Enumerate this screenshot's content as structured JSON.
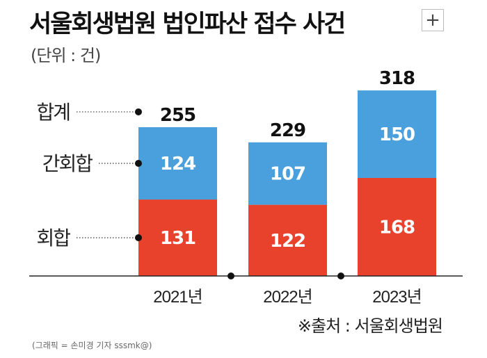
{
  "header": {
    "title": "서울회생법원 법인파산 접수 사건",
    "unit": "(단위 : 건)",
    "zoom_symbol": "+"
  },
  "chart_data": {
    "type": "bar",
    "stacked": true,
    "categories": [
      "2021년",
      "2022년",
      "2023년"
    ],
    "series": [
      {
        "name": "회합",
        "values": [
          131,
          122,
          168
        ],
        "color": "#e8412c"
      },
      {
        "name": "간회합",
        "values": [
          124,
          107,
          150
        ],
        "color": "#4aa0dc"
      }
    ],
    "totals": [
      255,
      229,
      318
    ],
    "total_label": "합계",
    "ylim": [
      0,
      330
    ],
    "grid": false
  },
  "footer": {
    "source": "※출처 : 서울회생법원",
    "credit": "(그래픽 = 손미경 기자 sssmk@)"
  }
}
